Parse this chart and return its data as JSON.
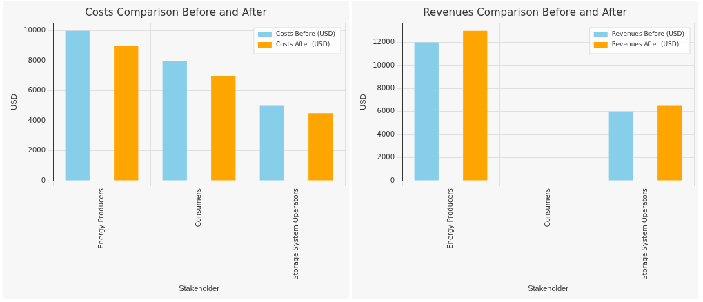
{
  "chart_data": [
    {
      "type": "bar",
      "title": "Costs Comparison Before and After",
      "xlabel": "Stakeholder",
      "ylabel": "USD",
      "categories": [
        "Energy Producers",
        "Consumers",
        "Storage System Operators"
      ],
      "series": [
        {
          "name": "Costs Before (USD)",
          "color": "#87ceeb",
          "values": [
            10000,
            8000,
            5000
          ]
        },
        {
          "name": "Costs After (USD)",
          "color": "#ffa500",
          "values": [
            9000,
            7000,
            4500
          ]
        }
      ],
      "ylim": [
        0,
        10500
      ],
      "yticks": [
        0,
        2000,
        4000,
        6000,
        8000,
        10000
      ],
      "grid": true,
      "legend": "top right"
    },
    {
      "type": "bar",
      "title": "Revenues Comparison Before and After",
      "xlabel": "Stakeholder",
      "ylabel": "USD",
      "categories": [
        "Energy Producers",
        "Consumers",
        "Storage System Operators"
      ],
      "series": [
        {
          "name": "Revenues Before (USD)",
          "color": "#87ceeb",
          "values": [
            12000,
            0,
            6000
          ]
        },
        {
          "name": "Revenues After (USD)",
          "color": "#ffa500",
          "values": [
            13000,
            0,
            6500
          ]
        }
      ],
      "ylim": [
        0,
        13650
      ],
      "yticks": [
        0,
        2000,
        4000,
        6000,
        8000,
        10000,
        12000
      ],
      "grid": true,
      "legend": "top right"
    }
  ]
}
